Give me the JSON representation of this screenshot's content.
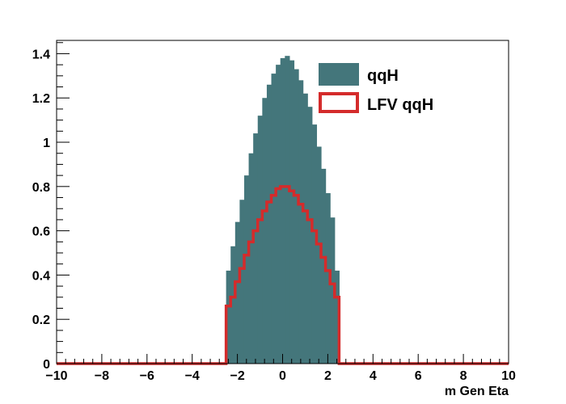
{
  "chart_data": {
    "type": "histogram",
    "xlabel": "m Gen Eta",
    "ylabel": "",
    "xlim": [
      -10,
      10
    ],
    "ylim": [
      0,
      1.46
    ],
    "x_ticks": [
      -10,
      -8,
      -6,
      -4,
      -2,
      0,
      2,
      4,
      6,
      8,
      10
    ],
    "y_ticks": [
      0,
      0.2,
      0.4,
      0.6,
      0.8,
      1,
      1.2,
      1.4
    ],
    "y_tick_labels": [
      "0",
      "0.2",
      "0.4",
      "0.6",
      "0.8",
      "1",
      "1.2",
      "1.4"
    ],
    "bin_width": 0.2,
    "bin_start": -2.5,
    "legend_position": "top-right",
    "series": [
      {
        "name": "qqH",
        "style": "filled",
        "color": "#44767b",
        "bin_range": [
          -2.5,
          2.5
        ],
        "values": [
          0.42,
          0.53,
          0.64,
          0.74,
          0.85,
          0.95,
          1.04,
          1.12,
          1.2,
          1.26,
          1.31,
          1.35,
          1.38,
          1.39,
          1.37,
          1.33,
          1.28,
          1.22,
          1.16,
          1.08,
          0.98,
          0.88,
          0.77,
          0.66,
          0.42
        ]
      },
      {
        "name": "LFV qqH",
        "style": "line",
        "color": "#d42b2b",
        "bin_range": [
          -2.5,
          2.5
        ],
        "values": [
          0.26,
          0.3,
          0.37,
          0.43,
          0.49,
          0.55,
          0.6,
          0.65,
          0.69,
          0.73,
          0.76,
          0.79,
          0.8,
          0.8,
          0.78,
          0.76,
          0.72,
          0.69,
          0.65,
          0.6,
          0.54,
          0.48,
          0.42,
          0.36,
          0.3
        ]
      }
    ]
  }
}
